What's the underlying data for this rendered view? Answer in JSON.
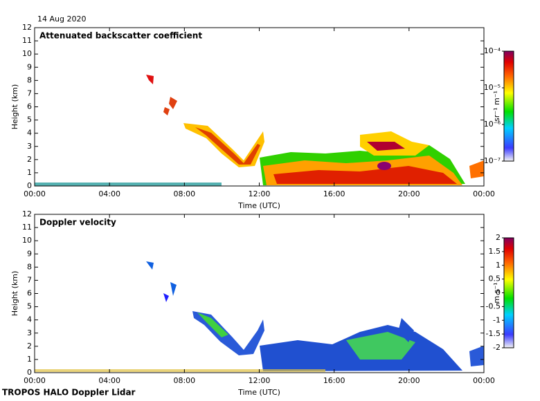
{
  "header": {
    "date": "14 Aug 2020"
  },
  "footer": "TROPOS HALO Doppler Lidar",
  "chart_data": [
    {
      "type": "heatmap",
      "title": "Attenuated backscatter coefficient",
      "xlabel": "Time (UTC)",
      "ylabel": "Height (km)",
      "xlim": [
        0,
        24
      ],
      "xticks": [
        {
          "value": 0,
          "label": "00:00"
        },
        {
          "value": 4,
          "label": "04:00"
        },
        {
          "value": 8,
          "label": "08:00"
        },
        {
          "value": 12,
          "label": "12:00"
        },
        {
          "value": 16,
          "label": "16:00"
        },
        {
          "value": 20,
          "label": "20:00"
        },
        {
          "value": 24,
          "label": "00:00"
        }
      ],
      "ylim": [
        0,
        12
      ],
      "yticks": [
        0,
        1,
        2,
        3,
        4,
        5,
        6,
        7,
        8,
        9,
        10,
        11,
        12
      ],
      "colorbar_label": "sr⁻¹ m⁻¹",
      "colorbar_scale": "log",
      "clim": [
        1e-07,
        0.0001
      ],
      "cticks": [
        {
          "value": 1e-07,
          "label": "10⁻⁷"
        },
        {
          "value": 1e-06,
          "label": "10⁻⁶"
        },
        {
          "value": 1e-05,
          "label": "10⁻⁵"
        },
        {
          "value": 0.0001,
          "label": "10⁻⁴"
        }
      ]
    },
    {
      "type": "heatmap",
      "title": "Doppler velocity",
      "xlabel": "Time (UTC)",
      "ylabel": "Height (km)",
      "xlim": [
        0,
        24
      ],
      "xticks": [
        {
          "value": 0,
          "label": "00:00"
        },
        {
          "value": 4,
          "label": "04:00"
        },
        {
          "value": 8,
          "label": "08:00"
        },
        {
          "value": 12,
          "label": "12:00"
        },
        {
          "value": 16,
          "label": "16:00"
        },
        {
          "value": 20,
          "label": "20:00"
        },
        {
          "value": 24,
          "label": "00:00"
        }
      ],
      "ylim": [
        0,
        12
      ],
      "yticks": [
        0,
        1,
        2,
        3,
        4,
        5,
        6,
        7,
        8,
        9,
        10,
        11,
        12
      ],
      "colorbar_label": "m s⁻¹",
      "colorbar_scale": "linear",
      "clim": [
        -2,
        2
      ],
      "cticks": [
        -2,
        -1.5,
        -1,
        -0.5,
        0,
        0.5,
        1,
        1.5,
        2
      ]
    }
  ]
}
